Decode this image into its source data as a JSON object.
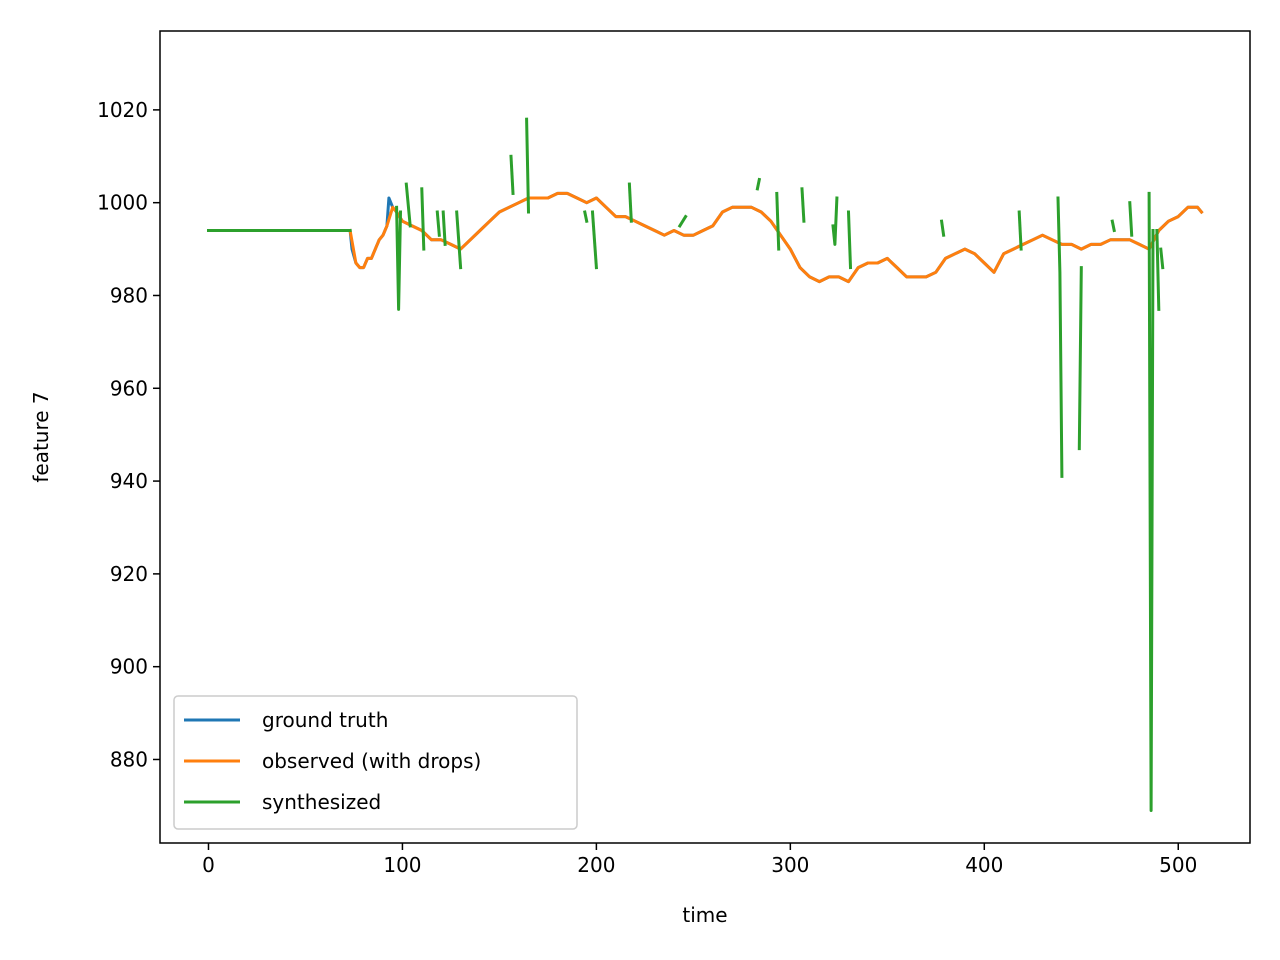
{
  "chart_data": {
    "type": "line",
    "title": "",
    "xlabel": "time",
    "ylabel": "feature 7",
    "xlim": [
      -25,
      537
    ],
    "ylim": [
      862,
      1037
    ],
    "xticks": [
      0,
      100,
      200,
      300,
      400,
      500
    ],
    "yticks": [
      880,
      900,
      920,
      940,
      960,
      980,
      1000,
      1020
    ],
    "grid": false,
    "legend_position": "lower-left",
    "series": [
      {
        "name": "ground truth",
        "color": "#1f77b4",
        "segments": [
          [
            [
              73,
              994
            ],
            [
              74,
              990
            ],
            [
              76,
              987
            ],
            [
              78,
              986
            ],
            [
              80,
              986
            ],
            [
              82,
              988
            ],
            [
              84,
              988
            ],
            [
              86,
              990
            ],
            [
              88,
              992
            ],
            [
              90,
              993
            ],
            [
              92,
              995
            ],
            [
              93,
              1001
            ],
            [
              95,
              999
            ],
            [
              97,
              998
            ],
            [
              100,
              996
            ],
            [
              105,
              995
            ],
            [
              110,
              994
            ],
            [
              115,
              992
            ],
            [
              120,
              992
            ],
            [
              125,
              991
            ],
            [
              130,
              990
            ],
            [
              135,
              992
            ],
            [
              140,
              994
            ],
            [
              145,
              996
            ],
            [
              150,
              998
            ],
            [
              155,
              999
            ],
            [
              160,
              1000
            ],
            [
              165,
              1001
            ],
            [
              170,
              1001
            ],
            [
              175,
              1001
            ],
            [
              180,
              1002
            ],
            [
              185,
              1002
            ],
            [
              190,
              1001
            ],
            [
              195,
              1000
            ],
            [
              200,
              1001
            ],
            [
              205,
              999
            ],
            [
              210,
              997
            ],
            [
              215,
              997
            ],
            [
              220,
              996
            ],
            [
              225,
              995
            ],
            [
              230,
              994
            ],
            [
              235,
              993
            ],
            [
              240,
              994
            ],
            [
              245,
              993
            ],
            [
              250,
              993
            ],
            [
              255,
              994
            ],
            [
              260,
              995
            ],
            [
              265,
              998
            ],
            [
              270,
              999
            ],
            [
              275,
              999
            ],
            [
              280,
              999
            ],
            [
              285,
              998
            ],
            [
              290,
              996
            ],
            [
              295,
              993
            ],
            [
              300,
              990
            ],
            [
              305,
              986
            ],
            [
              310,
              984
            ],
            [
              315,
              983
            ],
            [
              320,
              984
            ],
            [
              325,
              984
            ],
            [
              330,
              983
            ],
            [
              335,
              986
            ],
            [
              340,
              987
            ],
            [
              345,
              987
            ],
            [
              350,
              988
            ],
            [
              355,
              986
            ],
            [
              360,
              984
            ],
            [
              365,
              984
            ],
            [
              370,
              984
            ],
            [
              375,
              985
            ],
            [
              380,
              988
            ],
            [
              385,
              989
            ],
            [
              390,
              990
            ],
            [
              395,
              989
            ],
            [
              400,
              987
            ],
            [
              405,
              985
            ],
            [
              410,
              989
            ],
            [
              415,
              990
            ],
            [
              420,
              991
            ],
            [
              425,
              992
            ],
            [
              430,
              993
            ],
            [
              435,
              992
            ],
            [
              440,
              991
            ],
            [
              445,
              991
            ],
            [
              450,
              990
            ],
            [
              455,
              991
            ],
            [
              460,
              991
            ],
            [
              465,
              992
            ],
            [
              470,
              992
            ],
            [
              475,
              992
            ],
            [
              480,
              991
            ],
            [
              485,
              990
            ],
            [
              490,
              994
            ],
            [
              495,
              996
            ],
            [
              500,
              997
            ],
            [
              505,
              999
            ],
            [
              510,
              999
            ],
            [
              512,
              998
            ]
          ]
        ]
      },
      {
        "name": "observed (with drops)",
        "color": "#ff7f0e",
        "segments": [
          [
            [
              73,
              994
            ],
            [
              76,
              987
            ],
            [
              78,
              986
            ],
            [
              80,
              986
            ],
            [
              82,
              988
            ],
            [
              84,
              988
            ],
            [
              86,
              990
            ],
            [
              88,
              992
            ],
            [
              90,
              993
            ],
            [
              92,
              995
            ],
            [
              95,
              999
            ],
            [
              97,
              998
            ],
            [
              100,
              996
            ],
            [
              105,
              995
            ],
            [
              110,
              994
            ],
            [
              115,
              992
            ],
            [
              120,
              992
            ],
            [
              125,
              991
            ],
            [
              130,
              990
            ],
            [
              135,
              992
            ],
            [
              140,
              994
            ],
            [
              145,
              996
            ],
            [
              150,
              998
            ],
            [
              155,
              999
            ],
            [
              160,
              1000
            ],
            [
              165,
              1001
            ],
            [
              170,
              1001
            ],
            [
              175,
              1001
            ],
            [
              180,
              1002
            ],
            [
              185,
              1002
            ],
            [
              190,
              1001
            ],
            [
              195,
              1000
            ],
            [
              200,
              1001
            ],
            [
              205,
              999
            ],
            [
              210,
              997
            ],
            [
              215,
              997
            ],
            [
              220,
              996
            ],
            [
              225,
              995
            ],
            [
              230,
              994
            ],
            [
              235,
              993
            ],
            [
              240,
              994
            ],
            [
              245,
              993
            ],
            [
              250,
              993
            ],
            [
              255,
              994
            ],
            [
              260,
              995
            ],
            [
              265,
              998
            ],
            [
              270,
              999
            ],
            [
              275,
              999
            ],
            [
              280,
              999
            ],
            [
              285,
              998
            ],
            [
              290,
              996
            ],
            [
              295,
              993
            ],
            [
              300,
              990
            ],
            [
              305,
              986
            ],
            [
              310,
              984
            ],
            [
              315,
              983
            ],
            [
              320,
              984
            ],
            [
              325,
              984
            ],
            [
              330,
              983
            ],
            [
              335,
              986
            ],
            [
              340,
              987
            ],
            [
              345,
              987
            ],
            [
              350,
              988
            ],
            [
              355,
              986
            ],
            [
              360,
              984
            ],
            [
              365,
              984
            ],
            [
              370,
              984
            ],
            [
              375,
              985
            ],
            [
              380,
              988
            ],
            [
              385,
              989
            ],
            [
              390,
              990
            ],
            [
              395,
              989
            ],
            [
              400,
              987
            ],
            [
              405,
              985
            ],
            [
              410,
              989
            ],
            [
              415,
              990
            ],
            [
              420,
              991
            ],
            [
              425,
              992
            ],
            [
              430,
              993
            ],
            [
              435,
              992
            ],
            [
              440,
              991
            ],
            [
              445,
              991
            ],
            [
              450,
              990
            ],
            [
              455,
              991
            ],
            [
              460,
              991
            ],
            [
              465,
              992
            ],
            [
              470,
              992
            ],
            [
              475,
              992
            ],
            [
              480,
              991
            ],
            [
              485,
              990
            ],
            [
              490,
              994
            ],
            [
              495,
              996
            ],
            [
              500,
              997
            ],
            [
              505,
              999
            ],
            [
              510,
              999
            ],
            [
              512,
              998
            ]
          ]
        ]
      },
      {
        "name": "synthesized",
        "color": "#2ca02c",
        "segments": [
          [
            [
              0,
              994
            ],
            [
              73,
              994
            ]
          ],
          [
            [
              97,
              999
            ],
            [
              98,
              977
            ],
            [
              99,
              998
            ]
          ],
          [
            [
              102,
              1004
            ],
            [
              104,
              995
            ]
          ],
          [
            [
              110,
              1003
            ],
            [
              111,
              990
            ]
          ],
          [
            [
              118,
              998
            ],
            [
              119,
              993
            ]
          ],
          [
            [
              121,
              998
            ],
            [
              122,
              991
            ]
          ],
          [
            [
              128,
              998
            ],
            [
              130,
              986
            ]
          ],
          [
            [
              156,
              1010
            ],
            [
              157,
              1002
            ]
          ],
          [
            [
              164,
              1018
            ],
            [
              165,
              998
            ]
          ],
          [
            [
              194,
              998
            ],
            [
              195,
              996
            ]
          ],
          [
            [
              198,
              998
            ],
            [
              200,
              986
            ]
          ],
          [
            [
              217,
              1004
            ],
            [
              218,
              996
            ]
          ],
          [
            [
              243,
              995
            ],
            [
              246,
              997
            ]
          ],
          [
            [
              283,
              1003
            ],
            [
              284,
              1005
            ]
          ],
          [
            [
              293,
              1002
            ],
            [
              294,
              990
            ]
          ],
          [
            [
              306,
              1003
            ],
            [
              307,
              996
            ]
          ],
          [
            [
              322,
              995
            ],
            [
              323,
              991
            ],
            [
              324,
              1001
            ]
          ],
          [
            [
              330,
              998
            ],
            [
              331,
              986
            ]
          ],
          [
            [
              378,
              996
            ],
            [
              379,
              993
            ]
          ],
          [
            [
              418,
              998
            ],
            [
              419,
              990
            ]
          ],
          [
            [
              438,
              1001
            ],
            [
              439,
              985
            ],
            [
              440,
              941
            ]
          ],
          [
            [
              449,
              947
            ],
            [
              450,
              986
            ]
          ],
          [
            [
              466,
              996
            ],
            [
              467,
              994
            ]
          ],
          [
            [
              475,
              1000
            ],
            [
              476,
              993
            ]
          ],
          [
            [
              485,
              1002
            ],
            [
              486,
              869
            ],
            [
              487,
              994
            ]
          ],
          [
            [
              489,
              994
            ],
            [
              490,
              977
            ]
          ],
          [
            [
              491,
              990
            ],
            [
              492,
              986
            ]
          ]
        ]
      }
    ]
  }
}
